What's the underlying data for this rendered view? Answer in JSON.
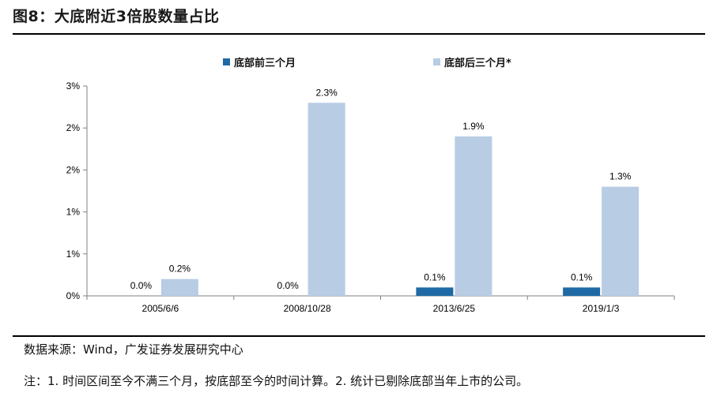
{
  "figure": {
    "title": "图8：大底附近3倍股数量占比",
    "source": "数据来源：Wind，广发证券发展研究中心",
    "note": "注：1. 时间区间至今不满三个月，按底部至今的时间计算。2. 统计已剔除底部当年上市的公司。"
  },
  "colors": {
    "before": "#1f6aa5",
    "after": "#b8cce4"
  },
  "chart_data": {
    "type": "bar",
    "categories": [
      "2005/6/6",
      "2008/10/28",
      "2013/6/25",
      "2019/1/3"
    ],
    "series": [
      {
        "name": "底部前三个月",
        "values": [
          0.0,
          0.0,
          0.1,
          0.1
        ],
        "labels": [
          "0.0%",
          "0.0%",
          "0.1%",
          "0.1%"
        ]
      },
      {
        "name": "底部后三个月*",
        "values": [
          0.2,
          2.3,
          1.9,
          1.3
        ],
        "labels": [
          "0.2%",
          "2.3%",
          "1.9%",
          "1.3%"
        ]
      }
    ],
    "ylim": [
      0,
      2.5
    ],
    "yticks": [
      0,
      0.5,
      1.0,
      1.5,
      2.0,
      2.5
    ],
    "ytick_labels": [
      "0%",
      "1%",
      "1%",
      "2%",
      "2%",
      "3%"
    ],
    "legend_position": "top",
    "grid": false
  }
}
